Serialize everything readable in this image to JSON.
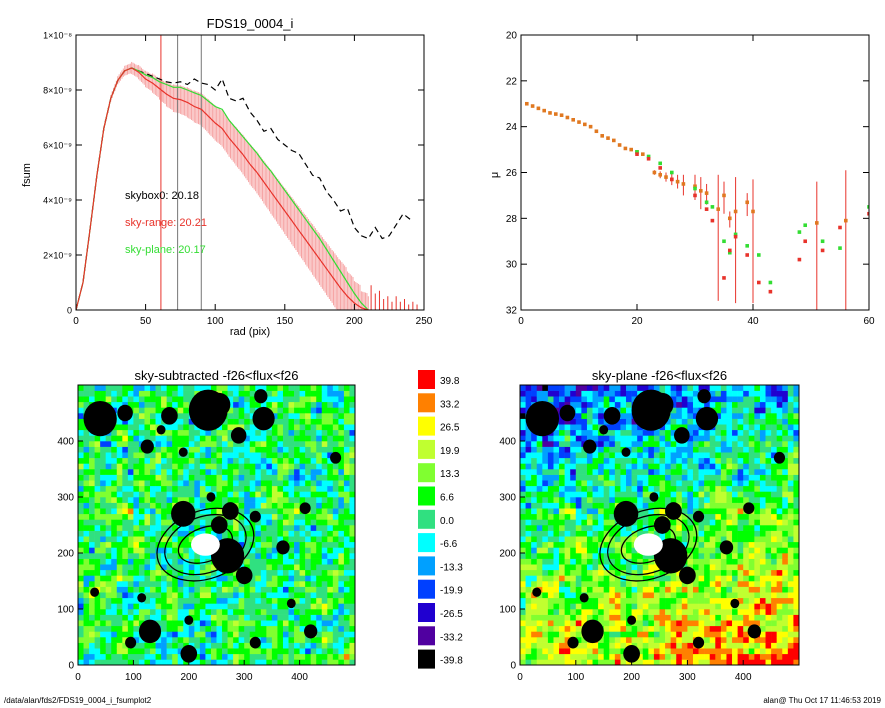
{
  "figure": {
    "footer_left": "/data/alan/fds2/FDS19_0004_i_fsumplot2",
    "footer_right": "alan@  Thu Oct 17 11:46:53 2019"
  },
  "colors": {
    "black_profile": "#000000",
    "red_profile": "#e8332b",
    "red_band": "#f6a4a4",
    "green_profile": "#33dd33",
    "orange_points": "#e07820",
    "gray_line": "#777777"
  },
  "chart_data": [
    {
      "id": "fsum",
      "type": "line",
      "title": "FDS19_0004_i",
      "xlabel": "rad (pix)",
      "ylabel": "fsum",
      "xlim": [
        0,
        250
      ],
      "ylim": [
        0,
        1e-08
      ],
      "xticks": [
        0,
        50,
        100,
        150,
        200,
        250
      ],
      "yticks": [
        {
          "v": 0,
          "l": "0"
        },
        {
          "v": 2e-09,
          "l": "2×10⁻⁹"
        },
        {
          "v": 4e-09,
          "l": "4×10⁻⁹"
        },
        {
          "v": 6e-09,
          "l": "6×10⁻⁹"
        },
        {
          "v": 8e-09,
          "l": "8×10⁻⁹"
        },
        {
          "v": 1e-08,
          "l": "1×10⁻⁸"
        }
      ],
      "annotations": [
        {
          "text": "skybox0: 20.18",
          "color": "#000000"
        },
        {
          "text": "sky-range: 20.21",
          "color": "#e8332b"
        },
        {
          "text": "sky-plane: 20.17",
          "color": "#33dd33"
        }
      ],
      "vlines": [
        {
          "x": 61,
          "color": "#e8332b"
        },
        {
          "x": 73,
          "color": "#777777"
        },
        {
          "x": 90,
          "color": "#777777"
        }
      ],
      "series": [
        {
          "name": "skybox0",
          "color": "#000000",
          "dashed": true,
          "x": [
            0,
            5,
            10,
            15,
            20,
            25,
            30,
            35,
            40,
            45,
            50,
            55,
            60,
            65,
            70,
            75,
            80,
            85,
            90,
            95,
            100,
            105,
            110,
            115,
            120,
            125,
            130,
            135,
            140,
            145,
            150,
            155,
            160,
            165,
            170,
            175,
            180,
            185,
            190,
            195,
            200,
            205,
            210,
            215,
            220,
            225,
            230,
            235,
            240
          ],
          "y": [
            0,
            1e-09,
            2.9e-09,
            4.9e-09,
            6.6e-09,
            7.7e-09,
            8.35e-09,
            8.7e-09,
            8.8e-09,
            8.7e-09,
            8.6e-09,
            8.5e-09,
            8.4e-09,
            8.3e-09,
            8.25e-09,
            8.3e-09,
            8.2e-09,
            8.4e-09,
            8.25e-09,
            8.2e-09,
            8e-09,
            8.4e-09,
            7.7e-09,
            7.6e-09,
            7.7e-09,
            7.2e-09,
            6.9e-09,
            6.5e-09,
            6.6e-09,
            6.2e-09,
            6e-09,
            5.8e-09,
            5.7e-09,
            5.3e-09,
            4.9e-09,
            4.8e-09,
            4.3e-09,
            4e-09,
            3.6e-09,
            3.7e-09,
            3e-09,
            2.7e-09,
            2.6e-09,
            3e-09,
            2.6e-09,
            2.7e-09,
            3.1e-09,
            3.5e-09,
            3.3e-09
          ]
        },
        {
          "name": "sky-plane",
          "color": "#33dd33",
          "dashed": false,
          "x": [
            0,
            5,
            10,
            15,
            20,
            25,
            30,
            35,
            40,
            45,
            50,
            55,
            60,
            65,
            70,
            75,
            80,
            85,
            90,
            95,
            100,
            105,
            110,
            115,
            120,
            125,
            130,
            135,
            140,
            145,
            150,
            155,
            160,
            165,
            170,
            175,
            180,
            185,
            190,
            195,
            200,
            205,
            210
          ],
          "y": [
            0,
            1e-09,
            2.9e-09,
            4.9e-09,
            6.6e-09,
            7.7e-09,
            8.35e-09,
            8.7e-09,
            8.8e-09,
            8.7e-09,
            8.55e-09,
            8.45e-09,
            8.3e-09,
            8.2e-09,
            8.1e-09,
            8.1e-09,
            8e-09,
            7.9e-09,
            7.8e-09,
            7.6e-09,
            7.4e-09,
            7.3e-09,
            6.9e-09,
            6.6e-09,
            6.3e-09,
            6e-09,
            5.7e-09,
            5.35e-09,
            5.05e-09,
            4.7e-09,
            4.35e-09,
            4e-09,
            3.65e-09,
            3.3e-09,
            2.95e-09,
            2.6e-09,
            2.2e-09,
            1.8e-09,
            1.4e-09,
            1e-09,
            6e-10,
            2.5e-10,
            0
          ]
        },
        {
          "name": "sky-range",
          "color": "#e8332b",
          "dashed": false,
          "x": [
            0,
            5,
            10,
            15,
            20,
            25,
            30,
            35,
            40,
            45,
            50,
            55,
            60,
            65,
            70,
            75,
            80,
            85,
            90,
            95,
            100,
            105,
            110,
            115,
            120,
            125,
            130,
            135,
            140,
            145,
            150,
            155,
            160,
            165,
            170,
            175,
            180,
            185,
            190,
            195,
            200,
            205,
            210
          ],
          "y": [
            0,
            1e-09,
            2.9e-09,
            4.9e-09,
            6.6e-09,
            7.7e-09,
            8.35e-09,
            8.7e-09,
            8.8e-09,
            8.65e-09,
            8.4e-09,
            8.25e-09,
            8.05e-09,
            7.85e-09,
            7.7e-09,
            7.65e-09,
            7.55e-09,
            7.4e-09,
            7.3e-09,
            7.05e-09,
            6.8e-09,
            6.6e-09,
            6.25e-09,
            5.95e-09,
            5.65e-09,
            5.3e-09,
            5e-09,
            4.65e-09,
            4.3e-09,
            3.95e-09,
            3.6e-09,
            3.25e-09,
            2.9e-09,
            2.55e-09,
            2.2e-09,
            1.85e-09,
            1.5e-09,
            1.15e-09,
            8e-10,
            5e-10,
            2.5e-10,
            8e-11,
            0
          ],
          "err": [
            0,
            2e-11,
            5e-11,
            8e-11,
            1e-10,
            1.2e-10,
            1.5e-10,
            1.8e-10,
            2.2e-10,
            2.6e-10,
            3e-10,
            3.5e-10,
            4e-10,
            4.5e-10,
            5e-10,
            5.2e-10,
            5.5e-10,
            5.8e-10,
            6e-10,
            6.2e-10,
            6.4e-10,
            6.6e-10,
            6.8e-10,
            7e-10,
            7.2e-10,
            7.4e-10,
            7.6e-10,
            7.8e-10,
            8e-10,
            8.2e-10,
            8.4e-10,
            8.6e-10,
            8.8e-10,
            9e-10,
            9.2e-10,
            9.4e-10,
            9.6e-10,
            9.8e-10,
            1e-09,
            9e-10,
            8e-10,
            6e-10,
            5e-10
          ]
        }
      ]
    },
    {
      "id": "mu",
      "type": "scatter",
      "title": "",
      "xlabel": "",
      "ylabel": "μ",
      "xlim": [
        0,
        60
      ],
      "ylim": [
        32,
        20
      ],
      "xticks": [
        0,
        20,
        40,
        60
      ],
      "yticks": [
        20,
        22,
        24,
        26,
        28,
        30,
        32
      ],
      "series": [
        {
          "name": "orange",
          "color": "#e07820",
          "x": [
            1,
            2,
            3,
            4,
            5,
            6,
            7,
            8,
            9,
            10,
            11,
            12,
            13,
            14,
            15,
            16,
            17,
            18,
            19,
            20,
            21,
            23,
            24,
            25,
            26,
            27,
            28,
            30,
            31,
            32,
            34,
            35,
            36,
            37,
            39,
            40,
            51,
            56
          ],
          "y": [
            23.0,
            23.1,
            23.2,
            23.3,
            23.4,
            23.45,
            23.5,
            23.6,
            23.7,
            23.8,
            23.9,
            24.0,
            24.2,
            24.4,
            24.5,
            24.6,
            24.8,
            24.95,
            25.0,
            25.1,
            25.2,
            26.0,
            26.1,
            26.2,
            26.3,
            26.4,
            26.5,
            26.6,
            26.8,
            26.9,
            27.6,
            27.0,
            28.0,
            27.7,
            27.3,
            27.7,
            28.2,
            28.1
          ],
          "err_lo": [
            0,
            0,
            0,
            0,
            0,
            0,
            0,
            0,
            0,
            0,
            0,
            0,
            0,
            0,
            0,
            0,
            0,
            0.05,
            0.05,
            0.05,
            0.05,
            0.1,
            0.15,
            0.2,
            0.25,
            0.3,
            0.4,
            0.5,
            0.6,
            0.4,
            1.5,
            0.6,
            0.3,
            1.5,
            0.4,
            1.4,
            1.8,
            2.2
          ],
          "err_hi": [
            0,
            0,
            0,
            0,
            0,
            0,
            0,
            0,
            0,
            0,
            0,
            0,
            0,
            0,
            0,
            0,
            0,
            0.05,
            0.05,
            0.05,
            0.05,
            0.1,
            0.15,
            0.2,
            0.25,
            0.3,
            0.5,
            0.6,
            0.8,
            0.5,
            4.0,
            0.8,
            0.4,
            4.0,
            0.6,
            4.0,
            4.0,
            4.0
          ]
        },
        {
          "name": "green",
          "color": "#33dd33",
          "x": [
            20,
            22,
            24,
            26,
            30,
            32,
            33,
            35,
            36,
            37,
            39,
            41,
            43,
            48,
            49,
            52,
            55,
            60
          ],
          "y": [
            25.1,
            25.3,
            25.6,
            26.0,
            26.7,
            27.3,
            27.5,
            29.0,
            29.5,
            28.7,
            29.2,
            29.6,
            30.8,
            28.6,
            28.3,
            29.0,
            29.3,
            27.5
          ],
          "err_lo": [
            0,
            0,
            0,
            0,
            0,
            0,
            0,
            0,
            0,
            0,
            0,
            0,
            0,
            0,
            0,
            0,
            0,
            0
          ],
          "err_hi": [
            0,
            0,
            0,
            0,
            0,
            0,
            0,
            0,
            0,
            0,
            0,
            0,
            0,
            0,
            0,
            0,
            0,
            0
          ]
        },
        {
          "name": "red",
          "color": "#e8332b",
          "x": [
            20,
            22,
            24,
            26,
            30,
            32,
            33,
            35,
            36,
            37,
            39,
            41,
            43,
            48,
            49,
            52,
            55,
            60
          ],
          "y": [
            25.2,
            25.4,
            25.8,
            26.3,
            27.0,
            27.6,
            28.1,
            30.6,
            29.4,
            28.8,
            29.6,
            30.8,
            31.2,
            29.8,
            29.0,
            29.4,
            28.4,
            27.8
          ],
          "err_lo": [
            0,
            0,
            0,
            0,
            0,
            0,
            0,
            0,
            0,
            0,
            0,
            0,
            0,
            0,
            0,
            0,
            0,
            0
          ],
          "err_hi": [
            0,
            0,
            0,
            0,
            0,
            0,
            0,
            0,
            0,
            0,
            0,
            0,
            0,
            0,
            0,
            0,
            0,
            0
          ]
        }
      ]
    },
    {
      "id": "img-left",
      "type": "heatmap",
      "title": "sky-subtracted -f26<flux<f26",
      "xlim": [
        0,
        500
      ],
      "ylim": [
        0,
        500
      ],
      "xticks": [
        0,
        100,
        200,
        300,
        400
      ],
      "yticks": [
        0,
        100,
        200,
        300,
        400
      ],
      "field": "noise",
      "target_center": [
        230,
        215
      ],
      "masks": [
        [
          40,
          440,
          30
        ],
        [
          85,
          450,
          14
        ],
        [
          125,
          390,
          12
        ],
        [
          165,
          445,
          15
        ],
        [
          235,
          455,
          35
        ],
        [
          255,
          465,
          20
        ],
        [
          335,
          440,
          20
        ],
        [
          290,
          410,
          14
        ],
        [
          330,
          480,
          12
        ],
        [
          150,
          420,
          8
        ],
        [
          190,
          270,
          22
        ],
        [
          275,
          275,
          15
        ],
        [
          320,
          265,
          10
        ],
        [
          255,
          250,
          15
        ],
        [
          270,
          195,
          30
        ],
        [
          300,
          160,
          15
        ],
        [
          410,
          280,
          10
        ],
        [
          465,
          370,
          10
        ],
        [
          370,
          210,
          12
        ],
        [
          130,
          60,
          20
        ],
        [
          95,
          40,
          10
        ],
        [
          200,
          20,
          15
        ],
        [
          320,
          40,
          10
        ],
        [
          240,
          300,
          8
        ],
        [
          115,
          120,
          8
        ],
        [
          385,
          110,
          8
        ],
        [
          30,
          130,
          8
        ],
        [
          420,
          60,
          12
        ],
        [
          200,
          80,
          8
        ],
        [
          190,
          380,
          8
        ]
      ]
    },
    {
      "id": "img-right",
      "type": "heatmap",
      "title": "sky-plane -f26<flux<f26",
      "xlim": [
        0,
        500
      ],
      "ylim": [
        0,
        500
      ],
      "xticks": [
        0,
        100,
        200,
        300,
        400
      ],
      "yticks": [
        0,
        100,
        200,
        300,
        400
      ],
      "field": "gradient",
      "target_center": [
        230,
        215
      ],
      "masks": [
        [
          40,
          440,
          30
        ],
        [
          85,
          450,
          14
        ],
        [
          125,
          390,
          12
        ],
        [
          165,
          445,
          15
        ],
        [
          235,
          455,
          35
        ],
        [
          255,
          465,
          20
        ],
        [
          335,
          440,
          20
        ],
        [
          290,
          410,
          14
        ],
        [
          330,
          480,
          12
        ],
        [
          150,
          420,
          8
        ],
        [
          190,
          270,
          22
        ],
        [
          275,
          275,
          15
        ],
        [
          320,
          265,
          10
        ],
        [
          255,
          250,
          15
        ],
        [
          270,
          195,
          30
        ],
        [
          300,
          160,
          15
        ],
        [
          410,
          280,
          10
        ],
        [
          465,
          370,
          10
        ],
        [
          370,
          210,
          12
        ],
        [
          130,
          60,
          20
        ],
        [
          95,
          40,
          10
        ],
        [
          200,
          20,
          15
        ],
        [
          320,
          40,
          10
        ],
        [
          240,
          300,
          8
        ],
        [
          115,
          120,
          8
        ],
        [
          385,
          110,
          8
        ],
        [
          30,
          130,
          8
        ],
        [
          420,
          60,
          12
        ],
        [
          200,
          80,
          8
        ],
        [
          190,
          380,
          8
        ]
      ]
    },
    {
      "id": "colorbar",
      "type": "table",
      "title": "",
      "levels": [
        {
          "label": "39.8",
          "color": "#ff0000"
        },
        {
          "label": "33.2",
          "color": "#ff8000"
        },
        {
          "label": "26.5",
          "color": "#ffff00"
        },
        {
          "label": "19.9",
          "color": "#c0ff30"
        },
        {
          "label": "13.3",
          "color": "#80ff30"
        },
        {
          "label": "6.6",
          "color": "#00ff00"
        },
        {
          "label": "0.0",
          "color": "#30e080"
        },
        {
          "label": "-6.6",
          "color": "#00ffff"
        },
        {
          "label": "-13.3",
          "color": "#00a0ff"
        },
        {
          "label": "-19.9",
          "color": "#0040ff"
        },
        {
          "label": "-26.5",
          "color": "#2000d0"
        },
        {
          "label": "-33.2",
          "color": "#5000a0"
        },
        {
          "label": "-39.8",
          "color": "#000000"
        }
      ]
    }
  ]
}
